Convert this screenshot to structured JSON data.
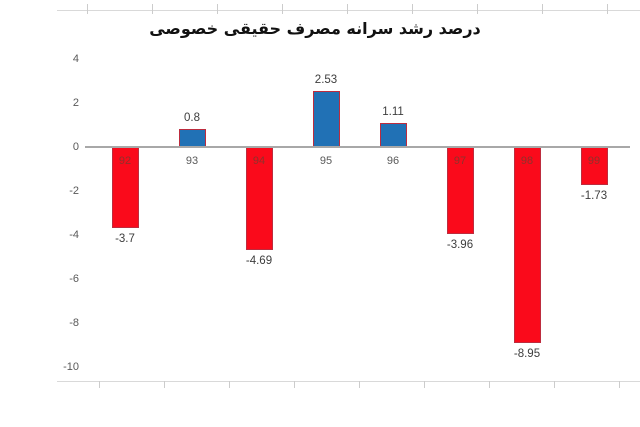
{
  "chart_data": {
    "type": "bar",
    "title": "درصد رشد سرانه مصرف حقیقی خصوصی",
    "categories": [
      "92",
      "93",
      "94",
      "95",
      "96",
      "97",
      "98",
      "99"
    ],
    "values": [
      -3.7,
      0.8,
      -4.69,
      2.53,
      1.11,
      -3.96,
      -8.95,
      -1.73
    ],
    "value_labels": [
      "-3.7",
      "0.8",
      "-4.69",
      "2.53",
      "1.11",
      "-3.96",
      "-8.95",
      "-1.73"
    ],
    "y_ticks": [
      "4",
      "2",
      "0",
      "-2",
      "-4",
      "-6",
      "-8",
      "-10"
    ],
    "ylim": [
      -10,
      4
    ],
    "xlabel": "",
    "ylabel": "",
    "grid": false,
    "legend": false,
    "bar_style": {
      "negative_fill": "#fa0a1b",
      "positive_fill": "#2171b5",
      "border": "#bd2c3e"
    },
    "label_colors": {
      "axis_text": "#595959",
      "value_text": "#3d3d3d",
      "category_on_bar_text": "#8e322c"
    },
    "axis_line_color": "#a8a8a8"
  }
}
